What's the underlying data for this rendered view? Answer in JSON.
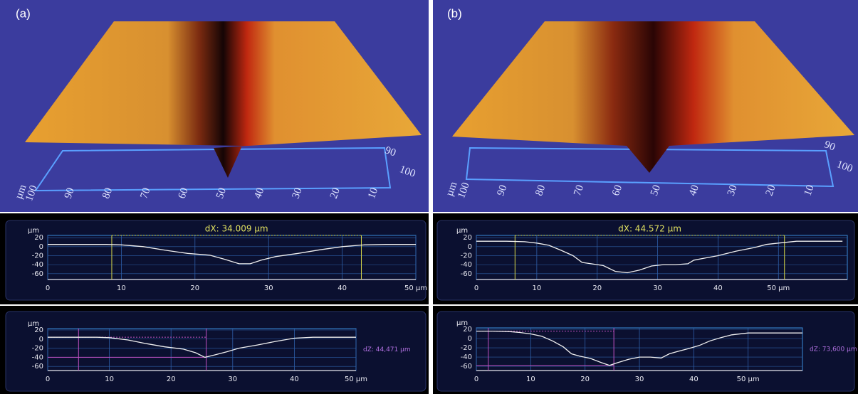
{
  "panels": [
    {
      "label": "(a)",
      "surface": {
        "unit": "µm",
        "x_ticks": [
          100,
          90,
          80,
          70,
          60,
          50,
          40,
          30,
          20,
          10
        ],
        "y_ticks": [
          90,
          100
        ]
      }
    },
    {
      "label": "(b)",
      "surface": {
        "unit": "µm",
        "x_ticks": [
          100,
          90,
          80,
          70,
          60,
          50,
          40,
          30,
          20,
          10
        ],
        "y_ticks": [
          90,
          100
        ]
      }
    }
  ],
  "chart_data": [
    {
      "type": "line",
      "y_label": "µm",
      "annotation": "dX: 34.009 µm",
      "annotation_color": "#e0e060",
      "x": [
        0,
        5,
        8,
        10,
        13,
        16,
        19,
        22,
        24,
        26,
        27.5,
        29,
        31,
        34,
        37,
        40,
        43,
        46,
        50
      ],
      "series": [
        {
          "color": "#f0f0f0",
          "values": [
            5,
            5,
            5,
            4,
            0,
            -8,
            -15,
            -19,
            -28,
            -38,
            -38,
            -30,
            -22,
            -15,
            -7,
            0,
            4,
            5,
            5
          ]
        }
      ],
      "cursors": [
        8.7,
        42.6
      ],
      "cursor_color": "#d8d84a",
      "xlim": [
        0,
        50
      ],
      "ylim": [
        -73,
        25
      ],
      "xticks": [
        0,
        10,
        20,
        30,
        40,
        {
          "value": 50,
          "label": "50 µm"
        }
      ],
      "yticks": [
        20,
        0,
        -20,
        -40,
        -60
      ],
      "grid": true
    },
    {
      "type": "line",
      "y_label": "µm",
      "annotation": "dZ: 44,471 µm",
      "annotation_color": "#b070e0",
      "x": [
        0,
        5,
        8,
        10,
        13,
        16,
        19,
        22,
        24,
        25.5,
        27,
        29,
        31,
        34,
        37,
        40,
        43,
        46,
        50
      ],
      "series": [
        {
          "color": "#f0f0f0",
          "values": [
            4,
            4,
            4,
            3,
            -2,
            -10,
            -17,
            -22,
            -30,
            -40,
            -35,
            -28,
            -20,
            -13,
            -5,
            2,
            4,
            4,
            4
          ]
        }
      ],
      "cursors": [
        5,
        25.7
      ],
      "levels": [
        4,
        -40
      ],
      "cursor_color": "#c050c0",
      "xlim": [
        0,
        50
      ],
      "ylim": [
        -69,
        23
      ],
      "xticks": [
        0,
        10,
        20,
        30,
        40,
        {
          "value": 50,
          "label": "50 µm"
        }
      ],
      "yticks": [
        20,
        0,
        -20,
        -40,
        -60
      ],
      "grid": true
    },
    {
      "type": "line",
      "y_label": "µm",
      "annotation": "dX: 44.572 µm",
      "annotation_color": "#e0e060",
      "x": [
        0,
        5,
        8,
        10,
        12,
        14,
        16,
        17.5,
        19,
        21,
        23,
        25,
        27,
        29,
        31,
        33,
        35,
        36,
        38,
        40,
        43,
        46,
        48,
        50,
        53,
        57,
        60.6
      ],
      "series": [
        {
          "color": "#f0f0f0",
          "values": [
            12,
            12,
            11,
            8,
            3,
            -8,
            -20,
            -35,
            -38,
            -42,
            -55,
            -58,
            -52,
            -43,
            -40,
            -40,
            -38,
            -30,
            -25,
            -20,
            -10,
            -2,
            5,
            8,
            12,
            12,
            12
          ]
        }
      ],
      "cursors": [
        6.4,
        51
      ],
      "cursor_color": "#d8d84a",
      "xlim": [
        0,
        61.4
      ],
      "ylim": [
        -73,
        25
      ],
      "xticks": [
        0,
        10,
        20,
        30,
        40,
        {
          "value": 50,
          "label": "50 µm"
        }
      ],
      "yticks": [
        20,
        0,
        -20,
        -40,
        -60
      ],
      "grid": true
    },
    {
      "type": "line",
      "y_label": "µm",
      "annotation": "dZ: 73,600 µm",
      "annotation_color": "#b070e0",
      "x": [
        0,
        3,
        6,
        8,
        10,
        12,
        14,
        16,
        17.5,
        19,
        21,
        23,
        24.5,
        26,
        28,
        30,
        32,
        34,
        35.5,
        37,
        39,
        41,
        43,
        45,
        47,
        50,
        55,
        60
      ],
      "series": [
        {
          "color": "#f0f0f0",
          "values": [
            16,
            16,
            15,
            13,
            10,
            5,
            -5,
            -18,
            -33,
            -38,
            -43,
            -52,
            -58,
            -52,
            -45,
            -40,
            -40,
            -42,
            -33,
            -28,
            -22,
            -15,
            -5,
            2,
            8,
            12,
            12,
            12
          ]
        }
      ],
      "cursors": [
        2.2,
        25.3
      ],
      "levels": [
        16,
        -58
      ],
      "cursor_color": "#c050c0",
      "xlim": [
        0,
        60
      ],
      "ylim": [
        -69,
        23
      ],
      "xticks": [
        0,
        10,
        20,
        30,
        40,
        {
          "value": 50,
          "label": "50 µm"
        }
      ],
      "yticks": [
        20,
        0,
        -20,
        -40,
        -60
      ],
      "grid": true
    }
  ]
}
